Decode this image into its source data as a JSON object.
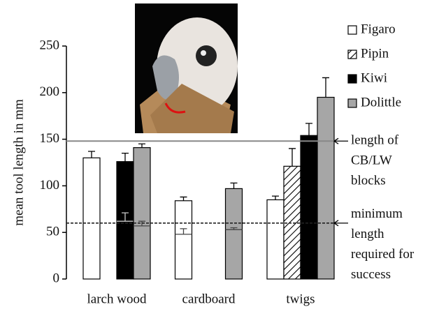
{
  "chart_data": {
    "type": "bar",
    "y_label": "mean tool length in mm",
    "categories": [
      "larch wood",
      "cardboard",
      "twigs"
    ],
    "ylim": [
      0,
      250
    ],
    "yticks": [
      0,
      50,
      100,
      150,
      200,
      250
    ],
    "series": [
      {
        "name": "Figaro",
        "color": "#ffffff",
        "values": [
          130,
          84,
          85
        ],
        "errors": [
          7,
          4,
          4
        ],
        "min_values": [
          null,
          48,
          null
        ],
        "min_errors": [
          null,
          6,
          null
        ]
      },
      {
        "name": "Pipin",
        "color": "hatch",
        "values": [
          null,
          null,
          121
        ],
        "errors": [
          null,
          null,
          19
        ],
        "min_values": [
          null,
          null,
          null
        ],
        "min_errors": [
          null,
          null,
          null
        ]
      },
      {
        "name": "Kiwi",
        "color": "#000000",
        "values": [
          126,
          null,
          154
        ],
        "errors": [
          9,
          null,
          13
        ],
        "min_values": [
          62,
          null,
          null
        ],
        "min_errors": [
          9,
          null,
          null
        ]
      },
      {
        "name": "Dolittle",
        "color": "#a6a6a6",
        "values": [
          141,
          97,
          195
        ],
        "errors": [
          4,
          6,
          21
        ],
        "min_values": [
          57,
          53,
          null
        ],
        "min_errors": [
          5,
          2,
          null
        ]
      }
    ],
    "reference_lines": [
      {
        "value": 148,
        "label": [
          "length of",
          "CB/LW",
          "blocks"
        ],
        "style": "solid"
      },
      {
        "value": 60,
        "label": [
          "minimum",
          "length",
          "required for",
          "success"
        ],
        "style": "dashed"
      }
    ]
  }
}
